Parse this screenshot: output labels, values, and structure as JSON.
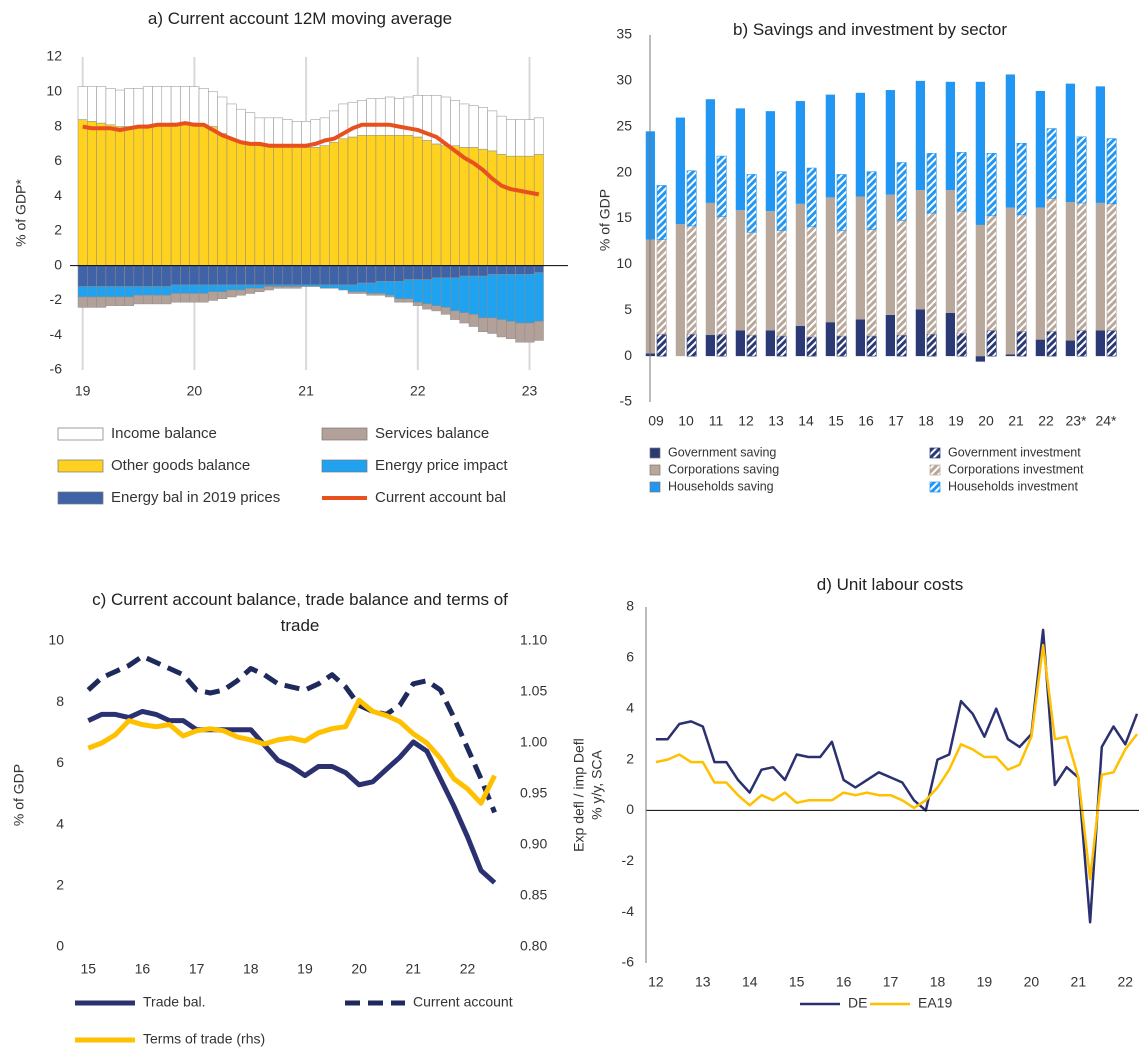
{
  "chart_data": [
    {
      "type": "bar",
      "title": "a) Current account 12M moving average",
      "y_label": "% of GDP*",
      "categories": [
        "19",
        null,
        null,
        null,
        null,
        null,
        null,
        null,
        null,
        null,
        null,
        null,
        "20",
        null,
        null,
        null,
        null,
        null,
        null,
        null,
        null,
        null,
        null,
        null,
        "21",
        null,
        null,
        null,
        null,
        null,
        null,
        null,
        null,
        null,
        null,
        null,
        "22",
        null,
        null,
        null,
        null,
        null,
        null,
        null,
        null,
        null,
        null,
        null,
        "23",
        null
      ],
      "ylim": [
        -6,
        12
      ],
      "yticks": [
        -6,
        -4,
        -2,
        0,
        2,
        4,
        6,
        8,
        10,
        12
      ],
      "xgrid": true,
      "series": [
        {
          "name": "Other goods balance",
          "color": "#ffd21f",
          "values": [
            8.4,
            8.3,
            8.2,
            8.1,
            8.0,
            8.0,
            8.0,
            8.1,
            8.1,
            8.1,
            8.2,
            8.2,
            8.2,
            8.1,
            8.0,
            7.6,
            7.3,
            7.1,
            7.0,
            7.0,
            6.9,
            6.9,
            6.9,
            6.9,
            6.8,
            6.8,
            6.9,
            7.1,
            7.3,
            7.4,
            7.5,
            7.5,
            7.5,
            7.5,
            7.5,
            7.5,
            7.4,
            7.2,
            7.0,
            6.9,
            6.9,
            6.8,
            6.8,
            6.7,
            6.6,
            6.4,
            6.3,
            6.3,
            6.3,
            6.4
          ]
        },
        {
          "name": "Income balance",
          "color": "#ffffff",
          "values": [
            1.9,
            2.0,
            2.1,
            2.1,
            2.1,
            2.2,
            2.2,
            2.2,
            2.2,
            2.2,
            2.1,
            2.1,
            2.1,
            2.1,
            2.0,
            2.1,
            2.0,
            1.9,
            1.8,
            1.5,
            1.6,
            1.6,
            1.5,
            1.4,
            1.5,
            1.6,
            1.6,
            1.8,
            2.0,
            2.0,
            2.0,
            2.1,
            2.1,
            2.2,
            2.1,
            2.2,
            2.4,
            2.6,
            2.8,
            2.8,
            2.6,
            2.5,
            2.4,
            2.4,
            2.3,
            2.2,
            2.1,
            2.1,
            2.1,
            2.1
          ]
        },
        {
          "name": "Energy bal in 2019 prices",
          "color": "#3f63a6",
          "values": [
            -1.2,
            -1.2,
            -1.2,
            -1.2,
            -1.2,
            -1.2,
            -1.2,
            -1.2,
            -1.2,
            -1.2,
            -1.1,
            -1.1,
            -1.1,
            -1.1,
            -1.1,
            -1.1,
            -1.1,
            -1.1,
            -1.1,
            -1.1,
            -1.1,
            -1.1,
            -1.1,
            -1.1,
            -1.1,
            -1.1,
            -1.1,
            -1.1,
            -1.1,
            -1.1,
            -1.0,
            -1.0,
            -0.9,
            -0.9,
            -0.9,
            -0.8,
            -0.8,
            -0.8,
            -0.7,
            -0.7,
            -0.7,
            -0.6,
            -0.6,
            -0.6,
            -0.5,
            -0.5,
            -0.5,
            -0.5,
            -0.5,
            -0.4
          ]
        },
        {
          "name": "Energy price impact",
          "color": "#1fa3f0",
          "values": [
            -0.6,
            -0.6,
            -0.6,
            -0.6,
            -0.6,
            -0.6,
            -0.5,
            -0.5,
            -0.5,
            -0.5,
            -0.5,
            -0.5,
            -0.5,
            -0.5,
            -0.4,
            -0.4,
            -0.3,
            -0.3,
            -0.2,
            -0.2,
            -0.1,
            -0.1,
            -0.1,
            -0.1,
            -0.1,
            -0.1,
            -0.2,
            -0.2,
            -0.3,
            -0.4,
            -0.5,
            -0.6,
            -0.7,
            -0.8,
            -1.0,
            -1.1,
            -1.3,
            -1.4,
            -1.6,
            -1.7,
            -1.9,
            -2.1,
            -2.2,
            -2.4,
            -2.5,
            -2.6,
            -2.7,
            -2.8,
            -2.8,
            -2.8
          ]
        },
        {
          "name": "Services balance",
          "color": "#b3a199",
          "values": [
            -0.6,
            -0.6,
            -0.6,
            -0.5,
            -0.5,
            -0.5,
            -0.5,
            -0.5,
            -0.5,
            -0.5,
            -0.5,
            -0.5,
            -0.5,
            -0.5,
            -0.5,
            -0.4,
            -0.4,
            -0.3,
            -0.3,
            -0.2,
            -0.2,
            -0.1,
            -0.1,
            -0.1,
            0,
            0,
            0,
            0,
            0,
            -0.1,
            -0.1,
            -0.1,
            -0.1,
            -0.1,
            -0.2,
            -0.2,
            -0.2,
            -0.3,
            -0.3,
            -0.4,
            -0.5,
            -0.6,
            -0.7,
            -0.8,
            -0.9,
            -1.0,
            -1.0,
            -1.1,
            -1.1,
            -1.1
          ]
        },
        {
          "name": "Current account bal",
          "type": "line",
          "color": "#e8501e",
          "values": [
            8.0,
            7.9,
            7.9,
            7.9,
            7.8,
            7.9,
            8.0,
            8.0,
            8.1,
            8.1,
            8.1,
            8.2,
            8.1,
            8.1,
            7.8,
            7.5,
            7.3,
            7.1,
            7.0,
            7.0,
            6.9,
            6.9,
            6.9,
            6.9,
            6.9,
            7.0,
            7.2,
            7.3,
            7.6,
            7.9,
            8.1,
            8.1,
            8.1,
            8.1,
            8.0,
            7.9,
            7.8,
            7.6,
            7.4,
            7.0,
            6.6,
            6.2,
            5.9,
            5.5,
            5.0,
            4.6,
            4.4,
            4.3,
            4.2,
            4.1
          ]
        }
      ]
    },
    {
      "type": "bar",
      "title": "b) Savings and investment by sector",
      "y_label": "% of GDP",
      "categories": [
        "09",
        "10",
        "11",
        "12",
        "13",
        "14",
        "15",
        "16",
        "17",
        "18",
        "19",
        "20",
        "21",
        "22",
        "23*",
        "24*"
      ],
      "ylim": [
        -5,
        35
      ],
      "yticks": [
        -5,
        0,
        5,
        10,
        15,
        20,
        25,
        30,
        35
      ],
      "series": [
        {
          "name": "Government saving",
          "color": "#2b3a74",
          "values": [
            0.3,
            0,
            2.3,
            2.8,
            2.8,
            3.3,
            3.7,
            4.0,
            4.5,
            5.1,
            4.7,
            -0.6,
            0.2,
            1.8,
            1.7,
            2.8
          ]
        },
        {
          "name": "Corporations saving",
          "color": "#b8a89c",
          "values": [
            12.4,
            14.4,
            14.4,
            13.1,
            13.0,
            13.3,
            13.6,
            13.4,
            13.1,
            13.0,
            13.4,
            14.3,
            16.0,
            14.4,
            15.1,
            13.9
          ]
        },
        {
          "name": "Households saving",
          "color": "#2196f3",
          "values": [
            11.8,
            11.6,
            11.3,
            11.1,
            10.9,
            11.2,
            11.2,
            11.3,
            11.4,
            11.9,
            11.8,
            15.6,
            14.5,
            12.7,
            12.9,
            12.7
          ]
        },
        {
          "name": "Government investment",
          "color": "#2b3a74",
          "hatched": true,
          "values": [
            2.4,
            2.4,
            2.4,
            2.3,
            2.2,
            2.1,
            2.2,
            2.2,
            2.3,
            2.4,
            2.5,
            2.8,
            2.7,
            2.7,
            2.8,
            2.8
          ]
        },
        {
          "name": "Corporations investment",
          "color": "#b8a89c",
          "hatched": true,
          "values": [
            10.3,
            11.8,
            12.8,
            11.2,
            11.5,
            12.0,
            11.5,
            11.6,
            12.5,
            13.2,
            13.3,
            12.5,
            12.7,
            14.5,
            13.9,
            13.8
          ]
        },
        {
          "name": "Households investment",
          "color": "#2196f3",
          "hatched": true,
          "values": [
            5.9,
            6.0,
            6.6,
            6.3,
            6.4,
            6.4,
            6.1,
            6.3,
            6.3,
            6.5,
            6.4,
            6.8,
            7.8,
            7.6,
            7.2,
            7.1
          ]
        }
      ]
    },
    {
      "type": "line",
      "title": "c) Current account balance, trade balance and terms of trade",
      "y_label": "% of GDP",
      "y2_label": "Exp defl / imp Defl",
      "x": [
        15,
        15.25,
        15.5,
        15.75,
        16,
        16.25,
        16.5,
        16.75,
        17,
        17.25,
        17.5,
        17.75,
        18,
        18.25,
        18.5,
        18.75,
        19,
        19.25,
        19.5,
        19.75,
        20,
        20.25,
        20.5,
        20.75,
        21,
        21.25,
        21.5,
        21.75,
        22,
        22.25,
        22.5
      ],
      "xlim": [
        14.7,
        22.6
      ],
      "xticks": [
        15,
        16,
        17,
        18,
        19,
        20,
        21,
        22
      ],
      "ylim": [
        0,
        10
      ],
      "yticks": [
        0,
        2,
        4,
        6,
        8,
        10
      ],
      "y2lim": [
        0.8,
        1.1
      ],
      "y2ticks": [
        {
          "value": 0.8,
          "label": "0.80"
        },
        0.85,
        {
          "value": 0.9,
          "label": "0.90"
        },
        0.95,
        {
          "value": 1.0,
          "label": "1.00"
        },
        1.05,
        {
          "value": 1.1,
          "label": "1.10"
        }
      ],
      "series": [
        {
          "name": "Trade bal.",
          "color": "#2b3170",
          "values": [
            7.4,
            7.6,
            7.6,
            7.5,
            7.7,
            7.6,
            7.4,
            7.4,
            7.1,
            7.1,
            7.1,
            7.1,
            7.1,
            6.6,
            6.1,
            5.9,
            5.6,
            5.9,
            5.9,
            5.7,
            5.3,
            5.4,
            5.8,
            6.2,
            6.7,
            6.4,
            5.5,
            4.6,
            3.6,
            2.5,
            2.1
          ]
        },
        {
          "name": "Current account",
          "color": "#1f2a5c",
          "dashed": true,
          "values": [
            8.4,
            8.8,
            9.0,
            9.2,
            9.5,
            9.3,
            9.1,
            8.9,
            8.4,
            8.3,
            8.4,
            8.7,
            9.1,
            8.9,
            8.6,
            8.5,
            8.4,
            8.6,
            8.9,
            8.5,
            7.9,
            7.7,
            7.6,
            7.9,
            8.6,
            8.7,
            8.4,
            7.5,
            6.5,
            5.5,
            4.4
          ]
        },
        {
          "name": "Terms of trade (rhs)",
          "color": "#ffc000",
          "axis": "y2",
          "values": [
            0.995,
            1.0,
            1.008,
            1.022,
            1.018,
            1.016,
            1.018,
            1.007,
            1.012,
            1.014,
            1.012,
            1.006,
            1.003,
            0.999,
            1.003,
            1.005,
            1.002,
            1.01,
            1.014,
            1.016,
            1.042,
            1.031,
            1.027,
            1.021,
            1.009,
            1.0,
            0.985,
            0.965,
            0.955,
            0.941,
            0.968
          ]
        }
      ]
    },
    {
      "type": "line",
      "title": "d) Unit labour costs",
      "y_label": "% y/y, SCA",
      "x": [
        12,
        12.25,
        12.5,
        12.75,
        13,
        13.25,
        13.5,
        13.75,
        14,
        14.25,
        14.5,
        14.75,
        15,
        15.25,
        15.5,
        15.75,
        16,
        16.25,
        16.5,
        16.75,
        17,
        17.25,
        17.5,
        17.75,
        18,
        18.25,
        18.5,
        18.75,
        19,
        19.25,
        19.5,
        19.75,
        20,
        20.25,
        20.5,
        20.75,
        21,
        21.25,
        21.5,
        21.75,
        22,
        22.25
      ],
      "xlim": [
        11.79,
        22.25
      ],
      "xticks": [
        12,
        13,
        14,
        15,
        16,
        17,
        18,
        19,
        20,
        21,
        22
      ],
      "ylim": [
        -6,
        8
      ],
      "yticks": [
        -6,
        -4,
        -2,
        0,
        2,
        4,
        6,
        8
      ],
      "series": [
        {
          "name": "DE",
          "color": "#2b3170",
          "values": [
            2.8,
            2.8,
            3.4,
            3.5,
            3.3,
            1.9,
            1.9,
            1.2,
            0.7,
            1.6,
            1.7,
            1.2,
            2.2,
            2.1,
            2.1,
            2.7,
            1.2,
            0.9,
            1.2,
            1.5,
            1.3,
            1.1,
            0.4,
            0.0,
            2.0,
            2.2,
            4.3,
            3.8,
            2.9,
            4.0,
            2.8,
            2.5,
            3.0,
            7.1,
            1.0,
            1.7,
            1.3,
            -4.4,
            2.5,
            3.3,
            2.6,
            3.8
          ]
        },
        {
          "name": "EA19",
          "color": "#ffc000",
          "values": [
            1.9,
            2.0,
            2.2,
            1.9,
            1.9,
            1.1,
            1.1,
            0.6,
            0.2,
            0.6,
            0.4,
            0.7,
            0.3,
            0.4,
            0.4,
            0.4,
            0.7,
            0.6,
            0.7,
            0.6,
            0.6,
            0.4,
            0.1,
            0.4,
            0.9,
            1.6,
            2.6,
            2.4,
            2.1,
            2.1,
            1.6,
            1.8,
            2.9,
            6.5,
            2.8,
            2.9,
            1.3,
            -2.7,
            1.4,
            1.5,
            2.4,
            3.0
          ]
        }
      ]
    }
  ]
}
